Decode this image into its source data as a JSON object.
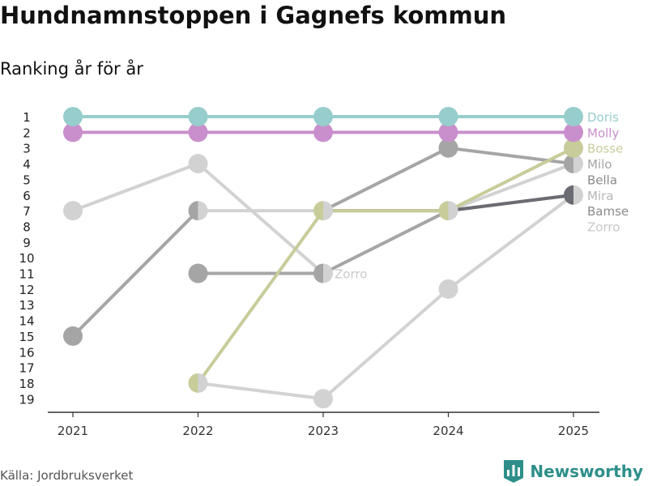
{
  "title": "Hundnamnstoppen i Gagnefs kommun",
  "subtitle": "Ranking år för år",
  "source": "Källa: Jordbruksverket",
  "brand": {
    "name": "Newsworthy",
    "icon": "newsworthy-logo-icon",
    "color": "#2e8f8a"
  },
  "chart_data": {
    "type": "line",
    "title": "Hundnamnstoppen i Gagnefs kommun",
    "subtitle": "Ranking år för år",
    "x": [
      "2021",
      "2022",
      "2023",
      "2024",
      "2025"
    ],
    "y_ticks": [
      1,
      2,
      3,
      4,
      5,
      6,
      7,
      8,
      9,
      10,
      11,
      12,
      13,
      14,
      15,
      16,
      17,
      18,
      19
    ],
    "ylim": [
      1,
      19
    ],
    "y_reversed": true,
    "grid": false,
    "series": [
      {
        "name": "Zorro",
        "color": "#d2d2d2",
        "values": [
          7,
          4,
          11,
          null,
          null
        ]
      },
      {
        "name": "Zorro",
        "color": "#d2d2d2",
        "values": [
          null,
          18,
          19,
          12,
          6
        ]
      },
      {
        "name": "Bella",
        "color": "#d2d2d2",
        "values": [
          null,
          7,
          7,
          7,
          4
        ]
      },
      {
        "name": "Milo",
        "color": "#a5a5a5",
        "values": [
          15,
          7,
          null,
          null,
          null
        ]
      },
      {
        "name": "Milo",
        "color": "#a5a5a5",
        "values": [
          null,
          null,
          7,
          3,
          4
        ]
      },
      {
        "name": "Bamse",
        "color": "#a5a5a5",
        "values": [
          null,
          11,
          11,
          7,
          6
        ]
      },
      {
        "name": "Mira",
        "color": "#6b6b73",
        "values": [
          null,
          null,
          7,
          7,
          6
        ]
      },
      {
        "name": "Bosse",
        "color": "#c8cc9a",
        "values": [
          null,
          18,
          7,
          7,
          3
        ]
      },
      {
        "name": "Molly",
        "color": "#c98fcc",
        "values": [
          2,
          2,
          2,
          2,
          2
        ]
      },
      {
        "name": "Doris",
        "color": "#97cdcc",
        "values": [
          1,
          1,
          1,
          1,
          1
        ]
      }
    ],
    "end_labels": [
      {
        "text": "Doris",
        "color": "#97cdcc"
      },
      {
        "text": "Molly",
        "color": "#c98fcc"
      },
      {
        "text": "Bosse",
        "color": "#c8cc9a"
      },
      {
        "text": "Milo",
        "color": "#a5a5a5"
      },
      {
        "text": "Bella",
        "color": "#8a8a8a"
      },
      {
        "text": "Mira",
        "color": "#b5b5b5"
      },
      {
        "text": "Bamse",
        "color": "#8a8a8a"
      },
      {
        "text": "Zorro",
        "color": "#c8c8c8"
      }
    ],
    "inline_labels": [
      {
        "text": "Zorro",
        "x": "2023",
        "rank": 11,
        "color": "#c8c8c8"
      }
    ]
  }
}
